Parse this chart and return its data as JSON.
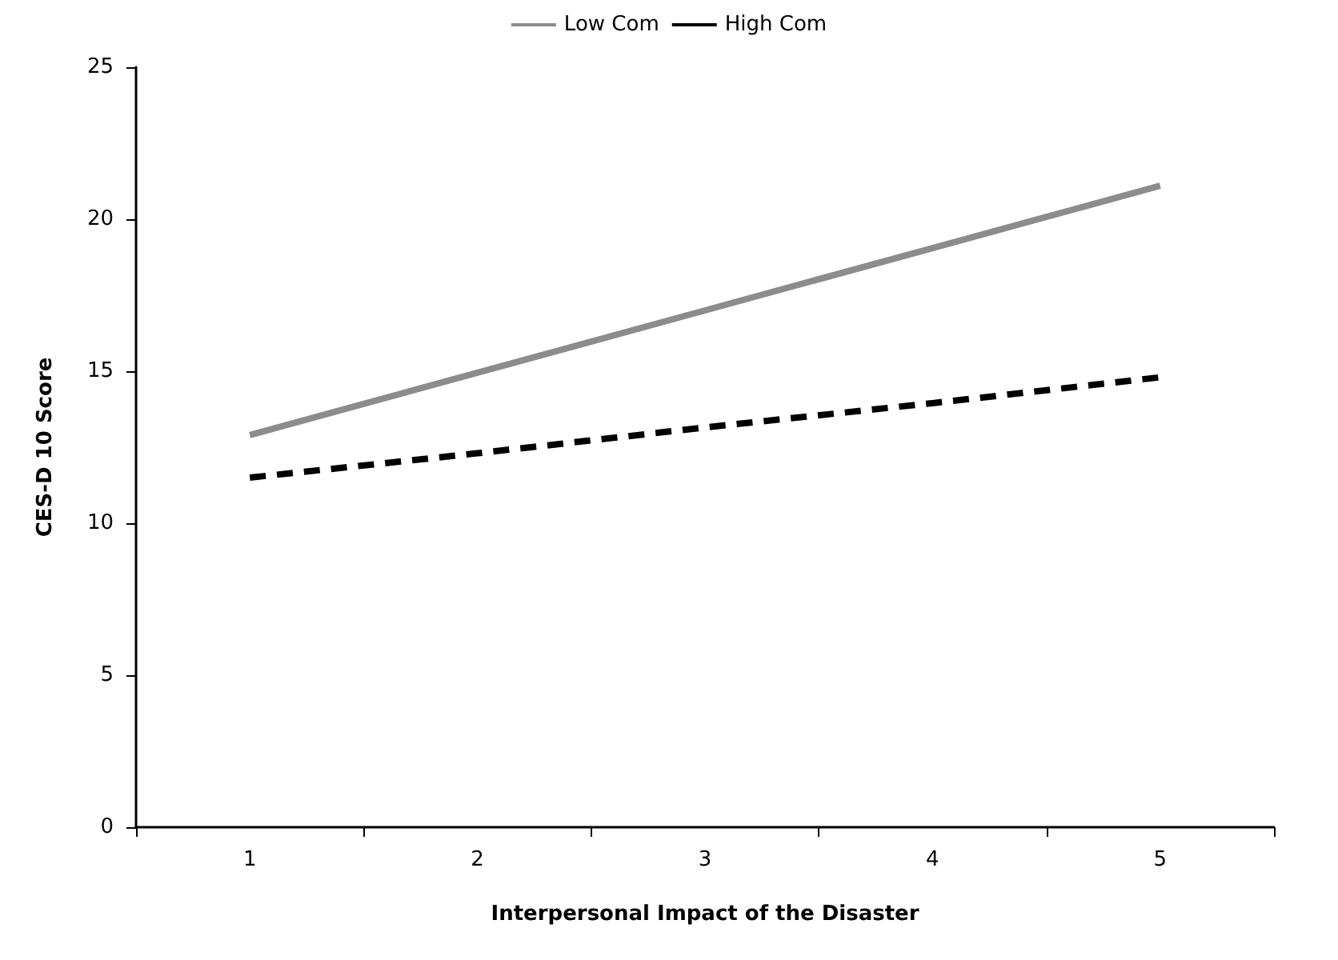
{
  "chart_data": {
    "type": "line",
    "xlabel": "Interpersonal Impact of the Disaster",
    "ylabel": "CES-D 10 Score",
    "categories": [
      "1",
      "2",
      "3",
      "4",
      "5"
    ],
    "series": [
      {
        "name": "Low Com",
        "color": "#8c8c8c",
        "line_style": "solid",
        "values": [
          12.9,
          14.95,
          17.0,
          19.05,
          21.1
        ]
      },
      {
        "name": "High Com",
        "color": "#000000",
        "line_style": "dashed",
        "values": [
          11.5,
          12.3,
          13.15,
          13.95,
          14.8
        ]
      }
    ],
    "ylim": [
      0,
      25
    ],
    "yticks": [
      0,
      5,
      10,
      15,
      20,
      25
    ],
    "grid": false,
    "legend": "top",
    "marker": "none"
  }
}
